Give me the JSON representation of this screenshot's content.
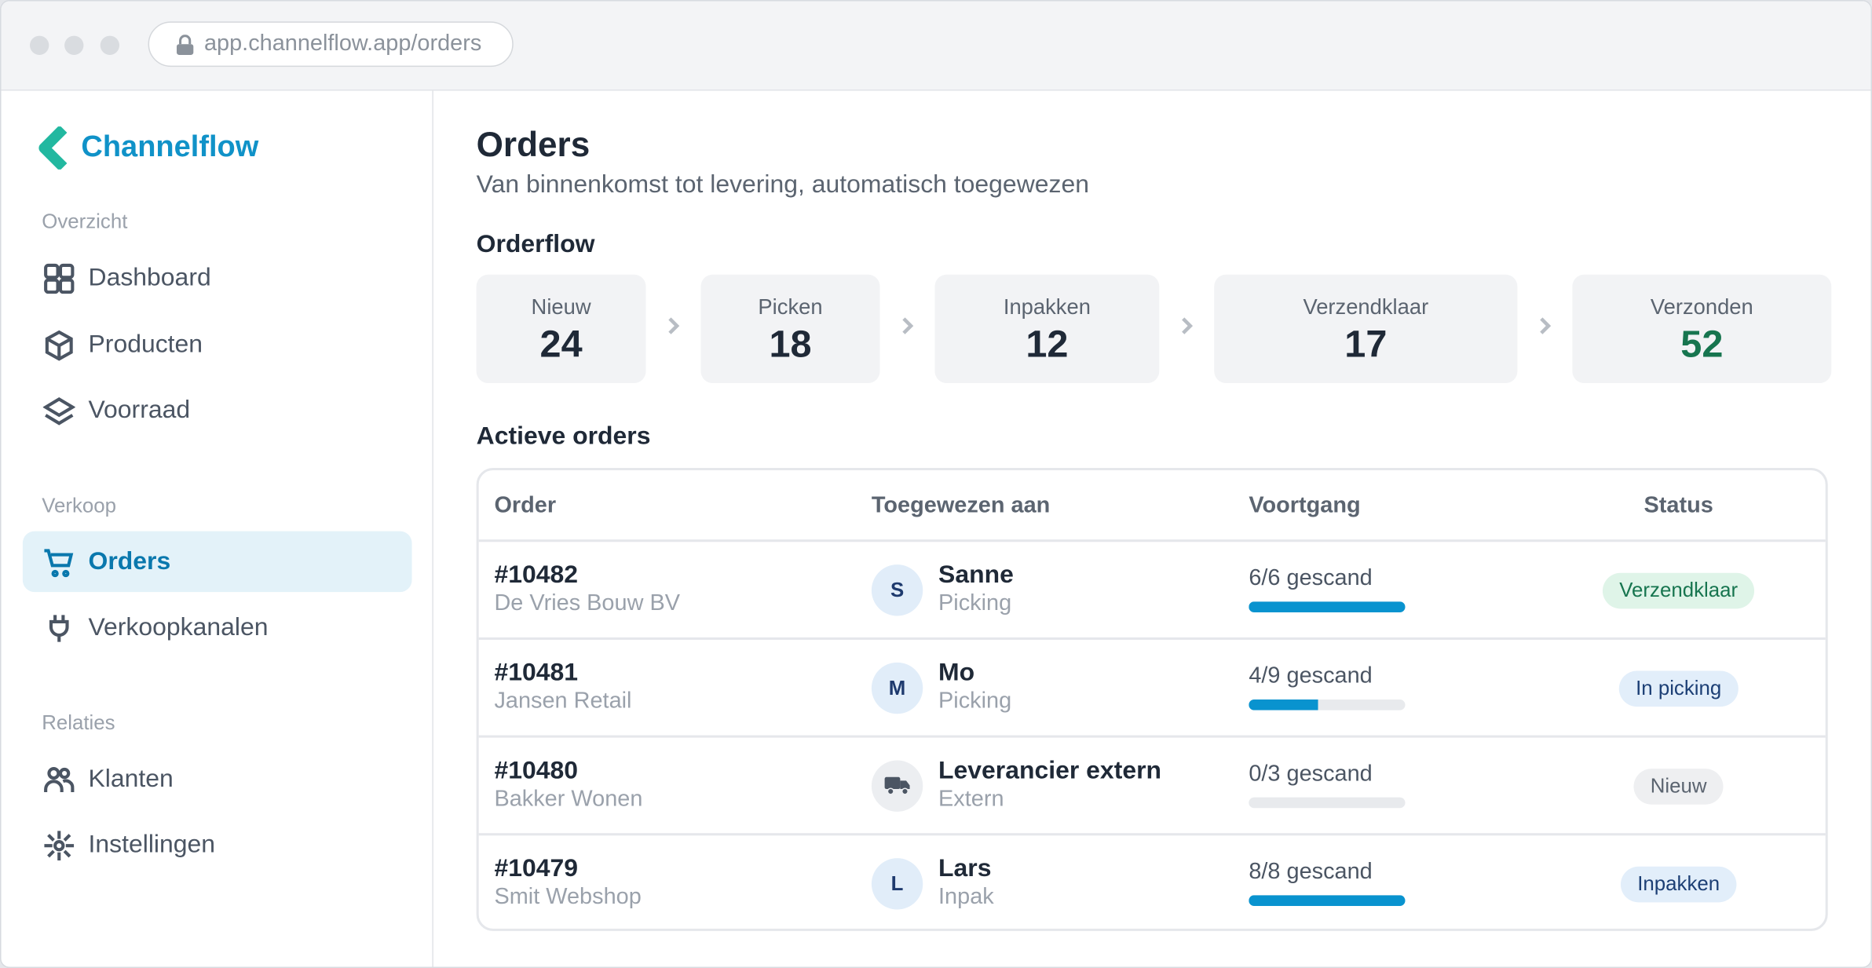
{
  "browser": {
    "url": "app.channelflow.app/orders"
  },
  "sidebar": {
    "brand": "Channelflow",
    "sections": [
      {
        "title": "Overzicht",
        "items": [
          {
            "label": "Dashboard"
          },
          {
            "label": "Producten"
          },
          {
            "label": "Voorraad"
          }
        ]
      },
      {
        "title": "Verkoop",
        "items": [
          {
            "label": "Orders",
            "active": true
          },
          {
            "label": "Verkoopkanalen"
          }
        ]
      },
      {
        "title": "Relaties",
        "items": [
          {
            "label": "Klanten"
          },
          {
            "label": "Instellingen"
          }
        ]
      }
    ]
  },
  "header": {
    "title": "Orders",
    "subtitle": "Van binnenkomst tot levering, automatisch toegewezen"
  },
  "orderflow": {
    "title": "Orderflow",
    "stages": [
      {
        "label": "Nieuw",
        "count": 24
      },
      {
        "label": "Picken",
        "count": 18
      },
      {
        "label": "Inpakken",
        "count": 12
      },
      {
        "label": "Verzendklaar",
        "count": 17
      },
      {
        "label": "Verzonden",
        "count": 52,
        "color": "#17754f"
      }
    ]
  },
  "table": {
    "title": "Actieve orders",
    "columns": [
      "Order",
      "Toegewezen aan",
      "Voortgang",
      "Status"
    ],
    "rows": [
      {
        "order": "#10482",
        "customer": "De Vries Bouw BV",
        "avatar": "S",
        "assignee": "Sanne",
        "role": "Picking",
        "progress": {
          "scanned": 6,
          "total": 6,
          "label": "6/6 gescand"
        },
        "status": {
          "label": "Verzendklaar",
          "tone": "green"
        }
      },
      {
        "order": "#10481",
        "customer": "Jansen Retail",
        "avatar": "M",
        "assignee": "Mo",
        "role": "Picking",
        "progress": {
          "scanned": 4,
          "total": 9,
          "label": "4/9 gescand"
        },
        "status": {
          "label": "In picking",
          "tone": "blue"
        }
      },
      {
        "order": "#10480",
        "customer": "Bakker Wonen",
        "assignee": "Leverancier extern",
        "role": "Extern",
        "progress": {
          "scanned": 0,
          "total": 3,
          "label": "0/3 gescand"
        },
        "status": {
          "label": "Nieuw",
          "tone": "gray"
        }
      },
      {
        "order": "#10479",
        "customer": "Smit Webshop",
        "avatar": "L",
        "assignee": "Lars",
        "role": "Inpak",
        "progress": {
          "scanned": 8,
          "total": 8,
          "label": "8/8 gescand"
        },
        "status": {
          "label": "Inpakken",
          "tone": "blue"
        }
      }
    ]
  }
}
